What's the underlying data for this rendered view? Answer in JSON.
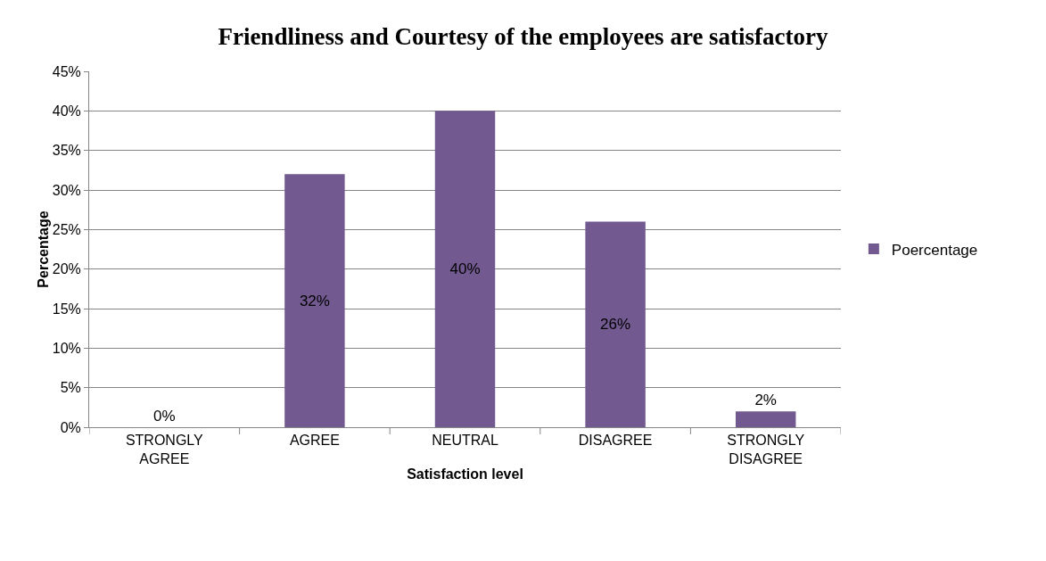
{
  "chart_data": {
    "type": "bar",
    "title": "Friendliness and Courtesy of the employees are satisfactory",
    "xlabel": "Satisfaction level",
    "ylabel": "Percentage",
    "categories": [
      "STRONGLY AGREE",
      "AGREE",
      "NEUTRAL",
      "DISAGREE",
      "STRONGLY DISAGREE"
    ],
    "series": [
      {
        "name": "Poercentage",
        "color": "#725990",
        "values": [
          0,
          32,
          40,
          26,
          2
        ],
        "value_labels": [
          "0%",
          "32%",
          "40%",
          "26%",
          "2%"
        ]
      }
    ],
    "ylim": [
      0,
      45
    ],
    "yticks": [
      {
        "value": 0,
        "label": "0%"
      },
      {
        "value": 5,
        "label": "5%"
      },
      {
        "value": 10,
        "label": "10%"
      },
      {
        "value": 15,
        "label": "15%"
      },
      {
        "value": 20,
        "label": "20%"
      },
      {
        "value": 25,
        "label": "25%"
      },
      {
        "value": 30,
        "label": "30%"
      },
      {
        "value": 35,
        "label": "35%"
      },
      {
        "value": 40,
        "label": "40%"
      },
      {
        "value": 45,
        "label": "45%"
      }
    ],
    "grid": "y",
    "legend": "right"
  }
}
